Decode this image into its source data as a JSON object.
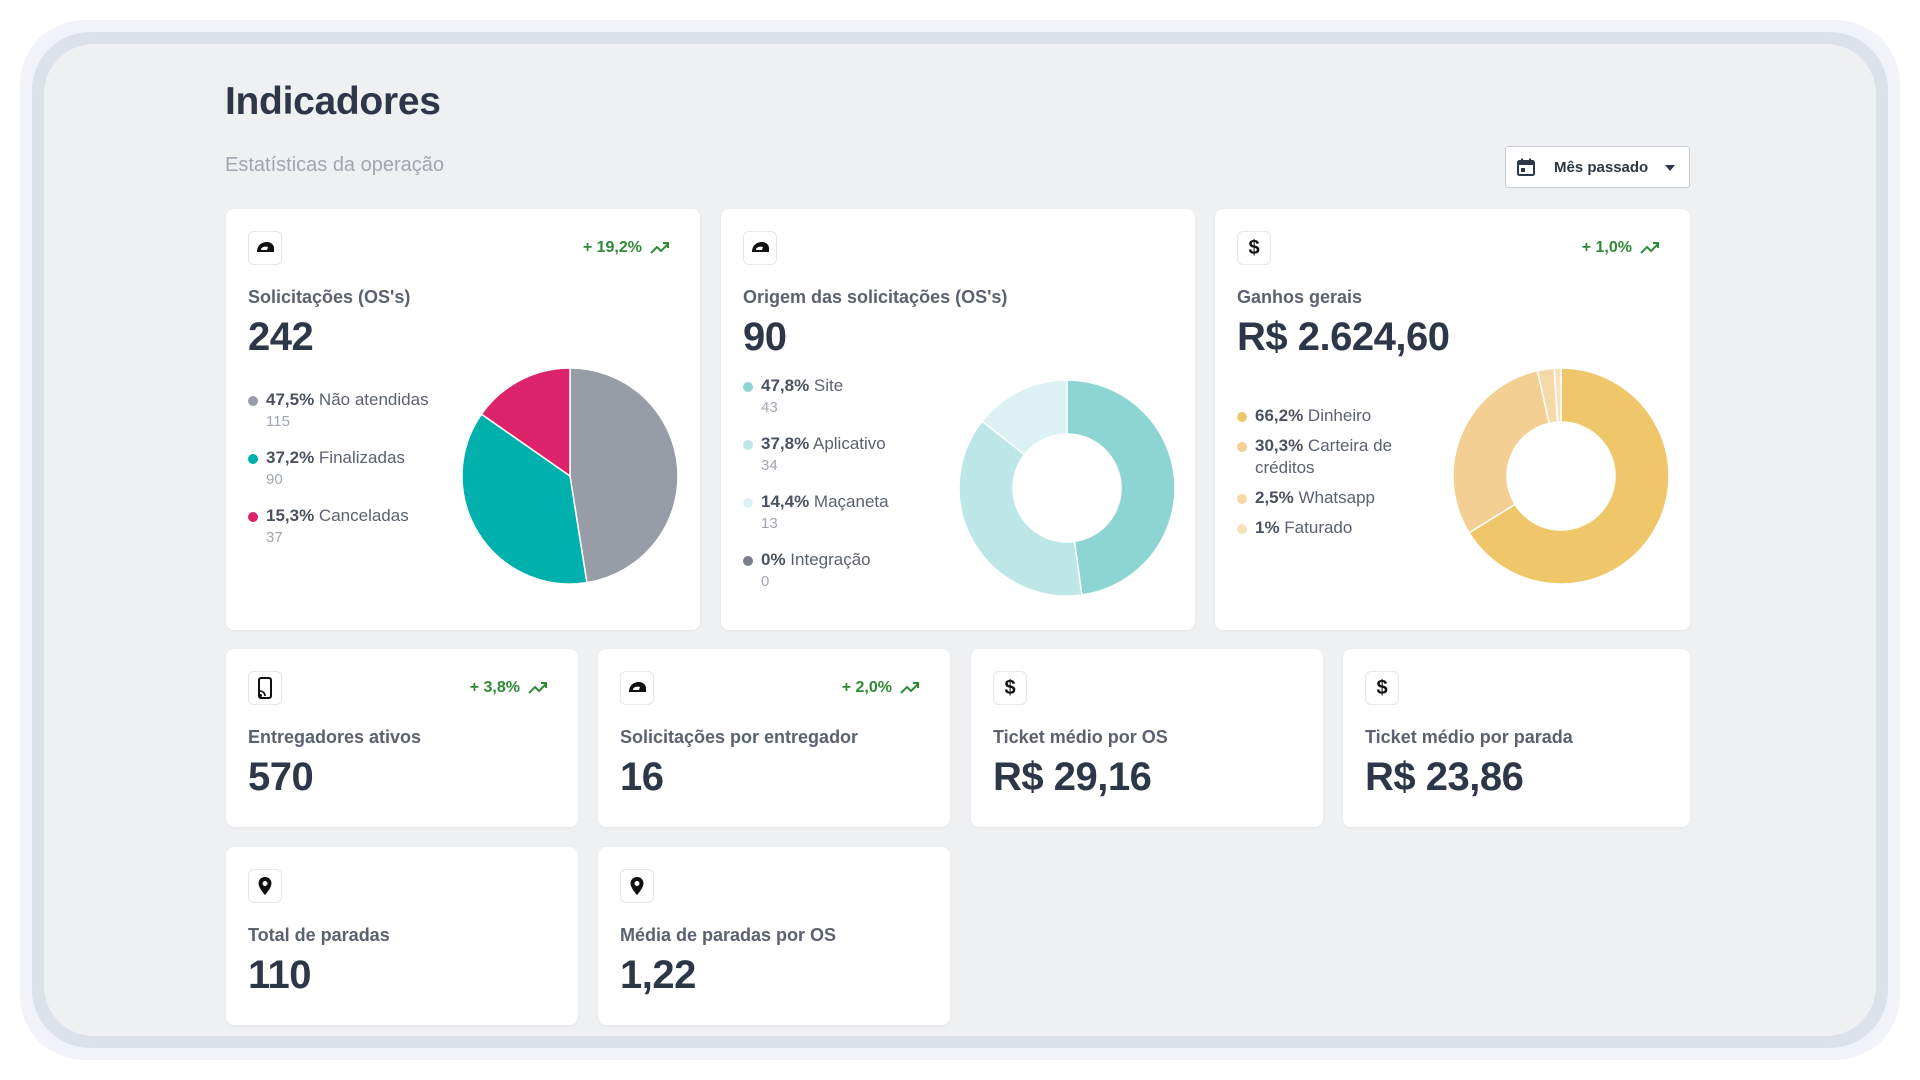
{
  "page": {
    "title": "Indicadores",
    "subtitle": "Estatísticas da operação",
    "period_label": "Mês passado"
  },
  "cards": {
    "solicitacoes": {
      "label": "Solicitações (OS's)",
      "value": "242",
      "trend": "+ 19,2%",
      "icon": "motorcycle-helmet-icon",
      "legend": [
        {
          "pct": "47,5%",
          "label": "Não atendidas",
          "count": "115",
          "color": "#979ca6"
        },
        {
          "pct": "37,2%",
          "label": "Finalizadas",
          "count": "90",
          "color": "#00b0ad"
        },
        {
          "pct": "15,3%",
          "label": "Canceladas",
          "count": "37",
          "color": "#dd246b"
        }
      ]
    },
    "origem": {
      "label": "Origem das solicitações (OS's)",
      "value": "90",
      "icon": "motorcycle-helmet-icon",
      "legend": [
        {
          "pct": "47,8%",
          "label": "Site",
          "count": "43",
          "color": "#8cd5d3"
        },
        {
          "pct": "37,8%",
          "label": "Aplicativo",
          "count": "34",
          "color": "#bde6e6"
        },
        {
          "pct": "14,4%",
          "label": "Maçaneta",
          "count": "13",
          "color": "#dcf1f1"
        },
        {
          "pct": "0%",
          "label": "Integração",
          "count": "0",
          "color": "#7a7f88"
        }
      ]
    },
    "ganhos": {
      "label": "Ganhos gerais",
      "value": "R$ 2.624,60",
      "trend": "+ 1,0%",
      "icon": "dollar-icon",
      "legend": [
        {
          "pct": "66,2%",
          "label": "Dinheiro",
          "color": "#f0c66a"
        },
        {
          "pct": "30,3%",
          "label": "Carteira de créditos",
          "color": "#f3cf93"
        },
        {
          "pct": "2,5%",
          "label": "Whatsapp",
          "color": "#f6d9a8"
        },
        {
          "pct": "1%",
          "label": "Faturado",
          "color": "#f8e2bc"
        }
      ]
    },
    "entregadores": {
      "label": "Entregadores ativos",
      "value": "570",
      "trend": "+ 3,8%",
      "icon": "mobile-signal-icon"
    },
    "por_entregador": {
      "label": "Solicitações por entregador",
      "value": "16",
      "trend": "+ 2,0%",
      "icon": "motorcycle-helmet-icon"
    },
    "ticket_os": {
      "label": "Ticket médio por OS",
      "value": "R$ 29,16",
      "icon": "dollar-icon"
    },
    "ticket_parada": {
      "label": "Ticket médio por parada",
      "value": "R$ 23,86",
      "icon": "dollar-icon"
    },
    "total_paradas": {
      "label": "Total de paradas",
      "value": "110",
      "icon": "location-pin-icon"
    },
    "media_paradas": {
      "label": "Média de paradas por OS",
      "value": "1,22",
      "icon": "location-pin-icon"
    }
  },
  "chart_data": [
    {
      "type": "pie",
      "categories": [
        "Não atendidas",
        "Finalizadas",
        "Canceladas"
      ],
      "values": [
        47.5,
        37.2,
        15.3
      ],
      "colors": [
        "#979ca6",
        "#00b0ad",
        "#dd246b"
      ]
    },
    {
      "type": "pie",
      "variant": "donut",
      "categories": [
        "Site",
        "Aplicativo",
        "Maçaneta",
        "Integração"
      ],
      "values": [
        47.8,
        37.8,
        14.4,
        0
      ],
      "colors": [
        "#8cd5d3",
        "#bde6e6",
        "#dcf1f1",
        "#7a7f88"
      ]
    },
    {
      "type": "pie",
      "variant": "donut",
      "categories": [
        "Dinheiro",
        "Carteira de créditos",
        "Whatsapp",
        "Faturado"
      ],
      "values": [
        66.2,
        30.3,
        2.5,
        1
      ],
      "colors": [
        "#f0c66a",
        "#f3cf93",
        "#f6d9a8",
        "#f8e2bc"
      ]
    }
  ]
}
